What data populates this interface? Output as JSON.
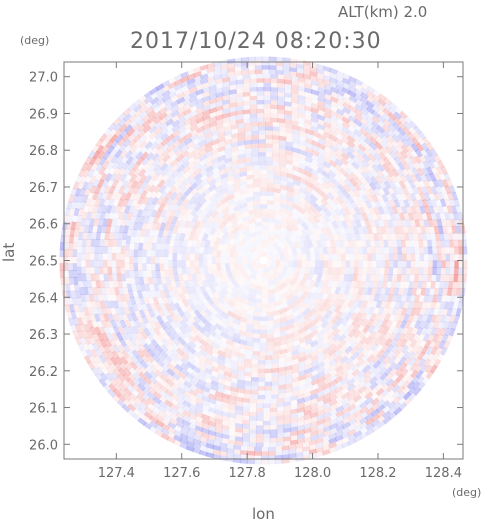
{
  "header": {
    "altitude_label": "ALT(km) 2.0",
    "timestamp": "2017/10/24 08:20:30"
  },
  "chart_data": {
    "type": "heatmap",
    "title": "2017/10/24 08:20:30",
    "subtitle": "ALT(km) 2.0",
    "xlabel": "lon",
    "ylabel": "lat",
    "x_unit": "(deg)",
    "y_unit": "(deg)",
    "xlim": [
      127.24,
      128.46
    ],
    "ylim": [
      25.96,
      27.04
    ],
    "x_ticks": [
      127.4,
      127.6,
      127.8,
      128.0,
      128.2,
      128.4
    ],
    "x_tick_labels": [
      "127.4",
      "127.6",
      "127.8",
      "128.0",
      "128.2",
      "128.4"
    ],
    "y_ticks": [
      26.0,
      26.1,
      26.2,
      26.3,
      26.4,
      26.5,
      26.6,
      26.7,
      26.8,
      26.9,
      27.0
    ],
    "y_tick_labels": [
      "26.0",
      "26.1",
      "26.2",
      "26.3",
      "26.4",
      "26.5",
      "26.6",
      "26.7",
      "26.8",
      "26.9",
      "27.0"
    ],
    "radar_center": {
      "lon": 127.85,
      "lat": 26.5
    },
    "radar_range_deg_lat": 0.555,
    "colors": {
      "positive": "#f08080",
      "negative": "#8888f0",
      "axis": "#7a7a7a"
    }
  }
}
